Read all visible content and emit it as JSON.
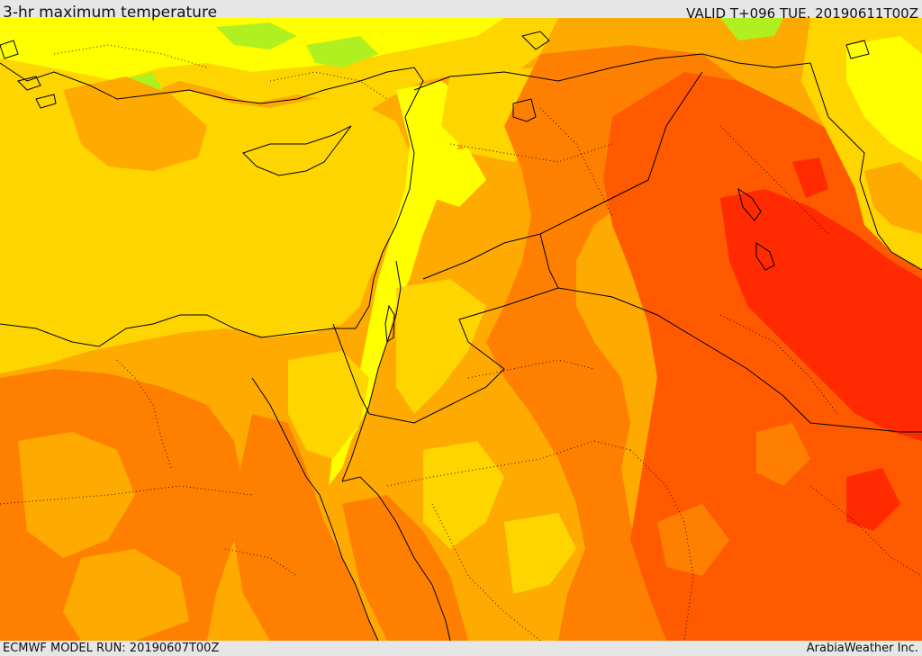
{
  "header": {
    "title": "3-hr maximum temperature",
    "valid": "VALID T+096 TUE. 20190611T00Z"
  },
  "footer": {
    "model_run": "ECMWF MODEL RUN: 20190607T00Z",
    "credit": "ArabiaWeather Inc."
  },
  "map": {
    "palette": {
      "green": "#b0f020",
      "light_yellow": "#ffff00",
      "yellow": "#ffd500",
      "light_orange": "#ffaa00",
      "orange": "#ff8000",
      "dark_orange": "#ff5a00",
      "red": "#ff2a00",
      "border": "#000000"
    }
  }
}
